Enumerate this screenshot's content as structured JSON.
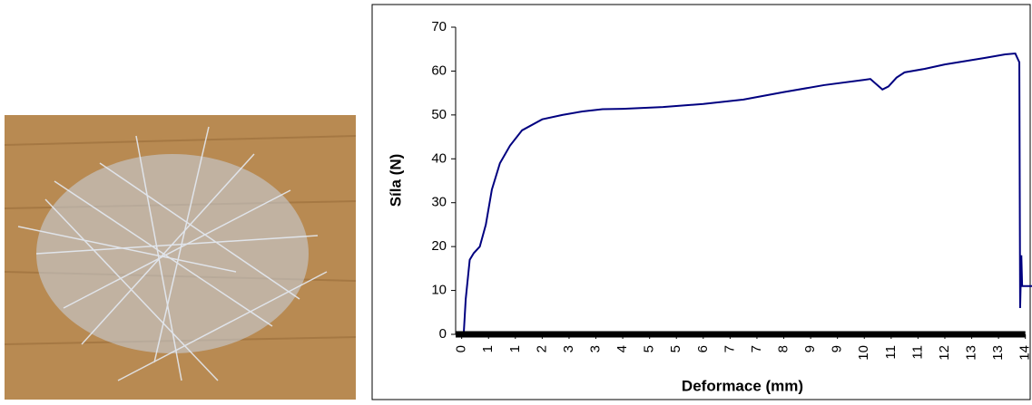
{
  "chart_data": {
    "type": "line",
    "xlabel": "Deformace (mm)",
    "ylabel": "Síla (N)",
    "x": [
      0,
      0.05,
      0.1,
      0.2,
      0.3,
      0.45,
      0.6,
      0.75,
      0.95,
      1.2,
      1.5,
      2,
      2.5,
      3,
      3.5,
      4,
      5,
      6,
      7,
      8,
      9,
      10,
      10.15,
      10.3,
      10.45,
      10.6,
      10.8,
      11,
      11.5,
      12,
      13,
      13.5,
      13.75,
      13.8,
      13.85,
      13.87,
      13.9,
      13.92,
      14.2
    ],
    "series": [
      {
        "color": "#000080",
        "values": [
          0,
          0,
          8,
          17,
          18.5,
          20,
          25,
          33,
          39,
          43,
          46.5,
          49,
          50,
          50.8,
          51.3,
          51.4,
          51.8,
          52.5,
          53.5,
          55.2,
          56.8,
          58,
          58.2,
          57,
          55.8,
          56.5,
          58.5,
          59.7,
          60.5,
          61.5,
          63,
          63.8,
          64,
          63,
          62,
          6,
          18,
          11,
          11
        ]
      }
    ],
    "xlim": [
      -0.15,
      14.3
    ],
    "ylim": [
      0,
      70
    ],
    "yticks": [
      0,
      10,
      20,
      30,
      40,
      50,
      60,
      70
    ],
    "xticks": [
      0,
      {
        "value": 0.667,
        "label": "1"
      },
      {
        "value": 1.333,
        "label": "1"
      },
      2,
      {
        "value": 2.667,
        "label": "3"
      },
      {
        "value": 3.333,
        "label": "3"
      },
      4,
      {
        "value": 4.667,
        "label": "5"
      },
      {
        "value": 5.333,
        "label": "5"
      },
      6,
      {
        "value": 6.667,
        "label": "7"
      },
      {
        "value": 7.333,
        "label": "7"
      },
      8,
      {
        "value": 8.667,
        "label": "9"
      },
      {
        "value": 9.333,
        "label": "9"
      },
      10,
      {
        "value": 10.667,
        "label": "11"
      },
      {
        "value": 11.333,
        "label": "11"
      },
      12,
      {
        "value": 12.667,
        "label": "13"
      },
      {
        "value": 13.333,
        "label": "13"
      },
      14
    ]
  }
}
